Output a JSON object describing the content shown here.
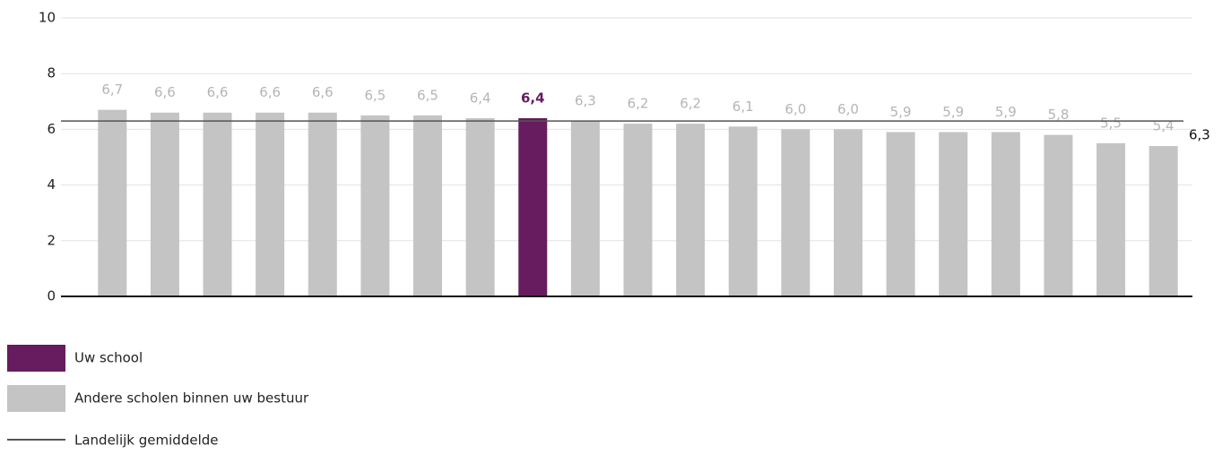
{
  "chart_data": {
    "type": "bar",
    "categories": [
      null,
      null,
      null,
      null,
      null,
      null,
      null,
      null,
      null,
      null,
      null,
      null,
      null,
      null,
      null,
      null,
      null,
      null,
      null,
      null,
      null
    ],
    "values": [
      6.7,
      6.6,
      6.6,
      6.6,
      6.6,
      6.5,
      6.5,
      6.4,
      6.4,
      6.3,
      6.2,
      6.2,
      6.1,
      6.0,
      6.0,
      5.9,
      5.9,
      5.9,
      5.8,
      5.5,
      5.4
    ],
    "value_labels": [
      "6,7",
      "6,6",
      "6,6",
      "6,6",
      "6,6",
      "6,5",
      "6,5",
      "6,4",
      "6,4",
      "6,3",
      "6,2",
      "6,2",
      "6,1",
      "6,0",
      "6,0",
      "5,9",
      "5,9",
      "5,9",
      "5,8",
      "5,5",
      "5,4"
    ],
    "colors": [
      "#c4c4c4",
      "#c4c4c4",
      "#c4c4c4",
      "#c4c4c4",
      "#c4c4c4",
      "#c4c4c4",
      "#c4c4c4",
      "#c4c4c4",
      "#661c5e",
      "#c4c4c4",
      "#c4c4c4",
      "#c4c4c4",
      "#c4c4c4",
      "#c4c4c4",
      "#c4c4c4",
      "#c4c4c4",
      "#c4c4c4",
      "#c4c4c4",
      "#c4c4c4",
      "#c4c4c4",
      "#c4c4c4"
    ],
    "legend": [
      {
        "name": "Uw school",
        "color": "#661c5e"
      },
      {
        "name": "Andere scholen binnen uw bestuur",
        "color": "#c4c4c4"
      }
    ],
    "reference_line": {
      "name": "Landelijk gemiddelde",
      "value": 6.3,
      "label": "6,3",
      "color": "#555555"
    },
    "ylim": [
      0,
      10
    ],
    "yticks": [
      0,
      2,
      4,
      6,
      8,
      10
    ],
    "grid": true
  }
}
